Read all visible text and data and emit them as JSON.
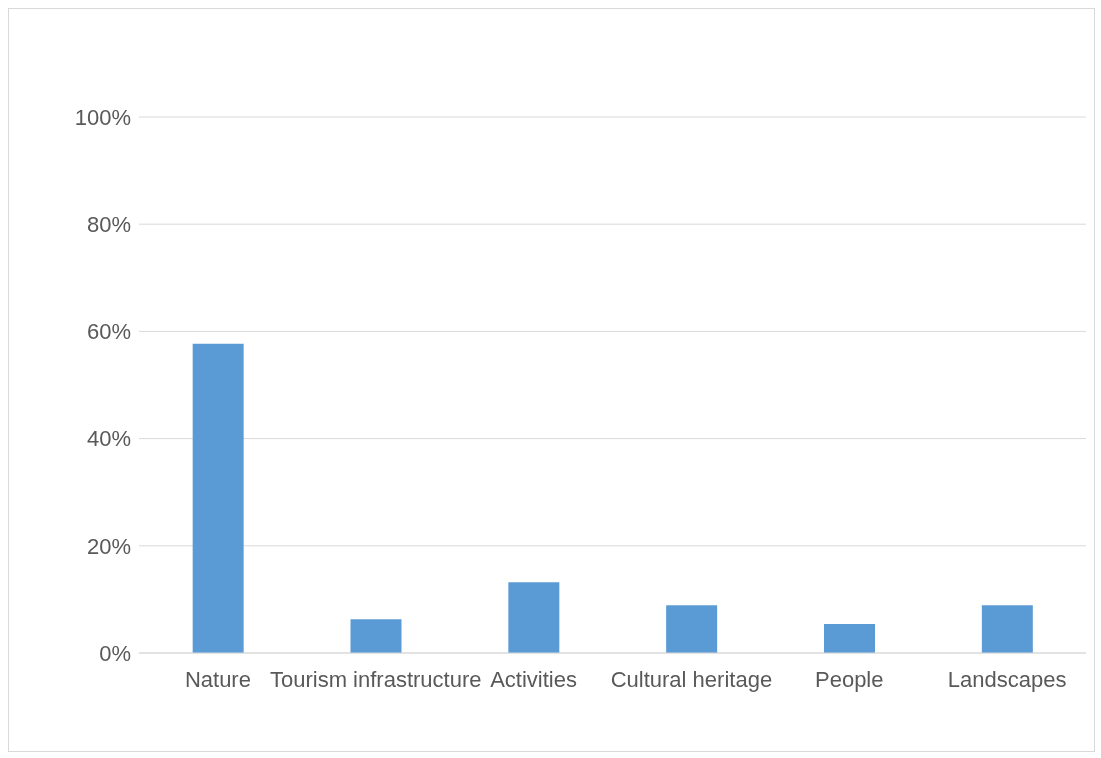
{
  "chart_data": {
    "type": "bar",
    "categories": [
      "Nature",
      "Tourism infrastructure",
      "Activities",
      "Cultural heritage",
      "People",
      "Landscapes"
    ],
    "values": [
      57.7,
      6.3,
      13.2,
      8.9,
      5.4,
      8.9
    ],
    "color": "#5b9bd5",
    "ylim": [
      0,
      100
    ],
    "yticks": [
      {
        "value": 0,
        "label": "0%"
      },
      {
        "value": 20,
        "label": "20%"
      },
      {
        "value": 40,
        "label": "40%"
      },
      {
        "value": 60,
        "label": "60%"
      },
      {
        "value": 80,
        "label": "80%"
      },
      {
        "value": 100,
        "label": "100%"
      }
    ],
    "grid": "y",
    "legend": false
  }
}
